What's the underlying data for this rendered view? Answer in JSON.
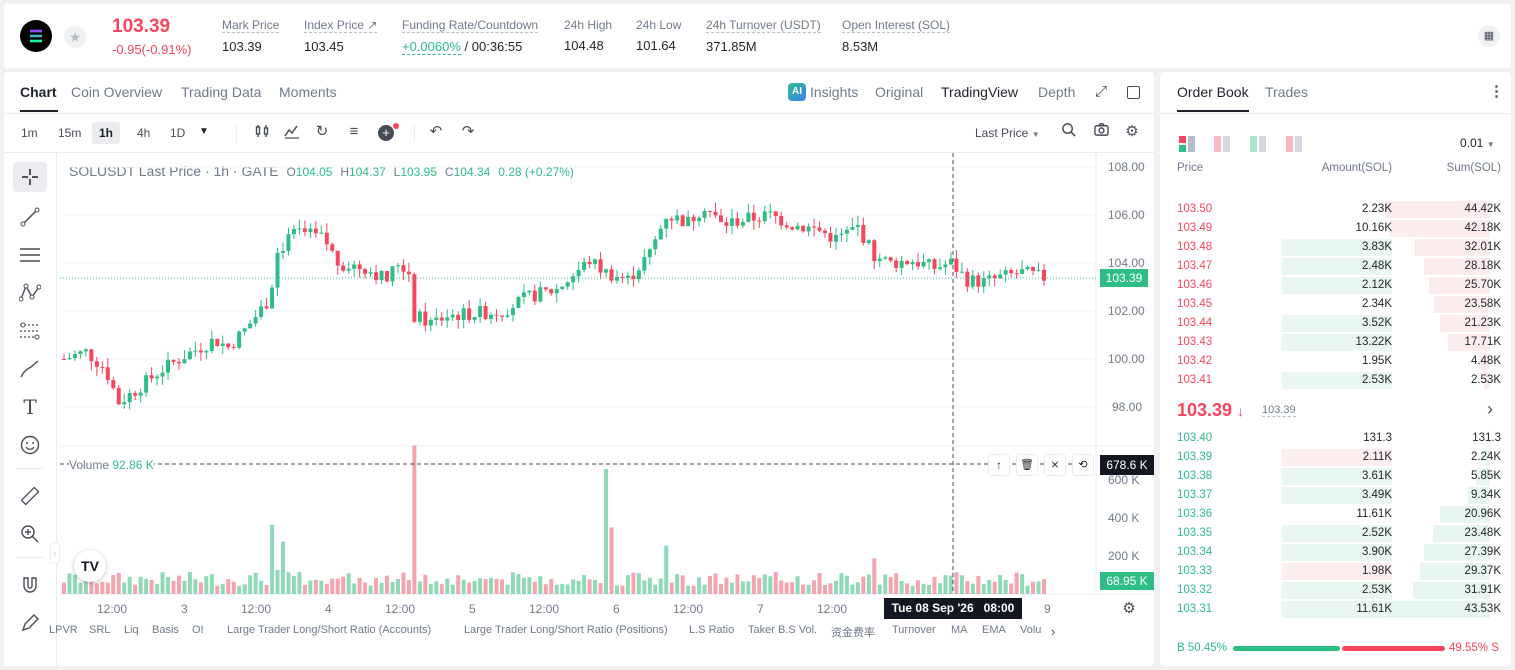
{
  "header": {
    "price": "103.39",
    "change": "-0.95(-0.91%)",
    "stats": [
      {
        "label": "Mark Price",
        "value": "103.39"
      },
      {
        "label": "Index Price ↗",
        "value": "103.45"
      },
      {
        "label": "Funding Rate/Countdown",
        "value_green": "+0.0060%",
        "value": " / 00:36:55"
      },
      {
        "label": "24h High",
        "value": "104.48"
      },
      {
        "label": "24h Low",
        "value": "101.64"
      },
      {
        "label": "24h Turnover (USDT)",
        "value": "371.85M"
      },
      {
        "label": "Open Interest (SOL)",
        "value": "8.53M"
      }
    ]
  },
  "chart_tabs": [
    "Chart",
    "Coin Overview",
    "Trading Data",
    "Moments"
  ],
  "view_tabs": {
    "insights": "Insights",
    "original": "Original",
    "tradingview": "TradingView",
    "depth": "Depth"
  },
  "timeframes": [
    "1m",
    "15m",
    "1h",
    "4h",
    "1D"
  ],
  "price_type": "Last Price",
  "legend": {
    "symbol": "SOLUSDT Last Price · 1h · GATE",
    "o_label": "O",
    "o": "104.05",
    "h_label": "H",
    "h": "104.37",
    "l_label": "L",
    "l": "103.95",
    "c_label": "C",
    "c": "104.34",
    "chg": "0.28 (+0.27%)"
  },
  "volume_legend": {
    "label": "Volume",
    "value": "92.86 K"
  },
  "price_axis": [
    "108.00",
    "106.00",
    "104.00",
    "102.00",
    "100.00",
    "98.00"
  ],
  "volume_axis": [
    "600 K",
    "400 K",
    "200 K"
  ],
  "last_price_tag": "103.39",
  "hover_volume_tag": "678.6 K",
  "last_volume_tag": "68.95 K",
  "time_axis": [
    "12:00",
    "3",
    "12:00",
    "4",
    "12:00",
    "5",
    "12:00",
    "6",
    "12:00",
    "7",
    "12:00",
    "9"
  ],
  "crosshair_time": "Tue 08 Sep '26   08:00",
  "bottom_indicators": [
    "LPVR",
    "SRL",
    "Liq",
    "Basis",
    "OI",
    "Large Trader Long/Short Ratio (Accounts)",
    "Large Trader Long/Short Ratio (Positions)",
    "L.S Ratio",
    "Taker B.S Vol.",
    "资金费率",
    "Turnover",
    "MA",
    "EMA",
    "Volu"
  ],
  "orderbook": {
    "tabs": [
      "Order Book",
      "Trades"
    ],
    "precision": "0.01",
    "headers": [
      "Price",
      "Amount(SOL)",
      "Sum(SOL)"
    ],
    "asks": [
      {
        "price": "103.50",
        "amount": "2.23K",
        "sum": "44.42K",
        "sum_frac": 1.0,
        "amt_frac": 0.0
      },
      {
        "price": "103.49",
        "amount": "10.16K",
        "sum": "42.18K",
        "sum_frac": 0.95,
        "amt_frac": 0.0
      },
      {
        "price": "103.48",
        "amount": "3.83K",
        "sum": "32.01K",
        "sum_frac": 0.72,
        "amt_frac": 0.5
      },
      {
        "price": "103.47",
        "amount": "2.48K",
        "sum": "28.18K",
        "sum_frac": 0.63,
        "amt_frac": 0.5
      },
      {
        "price": "103.46",
        "amount": "2.12K",
        "sum": "25.70K",
        "sum_frac": 0.58,
        "amt_frac": 0.5
      },
      {
        "price": "103.45",
        "amount": "2.34K",
        "sum": "23.58K",
        "sum_frac": 0.53,
        "amt_frac": 0.0
      },
      {
        "price": "103.44",
        "amount": "3.52K",
        "sum": "21.23K",
        "sum_frac": 0.48,
        "amt_frac": 0.5
      },
      {
        "price": "103.43",
        "amount": "13.22K",
        "sum": "17.71K",
        "sum_frac": 0.4,
        "amt_frac": 0.5
      },
      {
        "price": "103.42",
        "amount": "1.95K",
        "sum": "4.48K",
        "sum_frac": 0.1,
        "amt_frac": 0.0
      },
      {
        "price": "103.41",
        "amount": "2.53K",
        "sum": "2.53K",
        "sum_frac": 0.06,
        "amt_frac": 0.5
      }
    ],
    "mid_price": "103.39",
    "mid_mark": "103.39",
    "bids": [
      {
        "price": "103.40",
        "amount": "131.3",
        "sum": "131.3",
        "sum_frac": 0.01,
        "amt_frac": 0.0
      },
      {
        "price": "103.39",
        "amount": "2.11K",
        "sum": "2.24K",
        "sum_frac": 0.05,
        "amt_frac": 0.5
      },
      {
        "price": "103.38",
        "amount": "3.61K",
        "sum": "5.85K",
        "sum_frac": 0.13,
        "amt_frac": 0.5
      },
      {
        "price": "103.37",
        "amount": "3.49K",
        "sum": "9.34K",
        "sum_frac": 0.21,
        "amt_frac": 0.5
      },
      {
        "price": "103.36",
        "amount": "11.61K",
        "sum": "20.96K",
        "sum_frac": 0.48,
        "amt_frac": 0.0
      },
      {
        "price": "103.35",
        "amount": "2.52K",
        "sum": "23.48K",
        "sum_frac": 0.54,
        "amt_frac": 0.5
      },
      {
        "price": "103.34",
        "amount": "3.90K",
        "sum": "27.39K",
        "sum_frac": 0.63,
        "amt_frac": 0.5
      },
      {
        "price": "103.33",
        "amount": "1.98K",
        "sum": "29.37K",
        "sum_frac": 0.67,
        "amt_frac": 0.5
      },
      {
        "price": "103.32",
        "amount": "2.53K",
        "sum": "31.91K",
        "sum_frac": 0.73,
        "amt_frac": 0.5
      },
      {
        "price": "103.31",
        "amount": "11.61K",
        "sum": "43.53K",
        "sum_frac": 1.0,
        "amt_frac": 0.5
      }
    ],
    "buy_ratio": "B 50.45%",
    "sell_ratio": "49.55% S",
    "buy_frac": 0.5045
  },
  "colors": {
    "up": "#2ebd85",
    "down": "#f6465d",
    "up_bg": "#e7f6ee",
    "down_bg": "#fdecee"
  }
}
